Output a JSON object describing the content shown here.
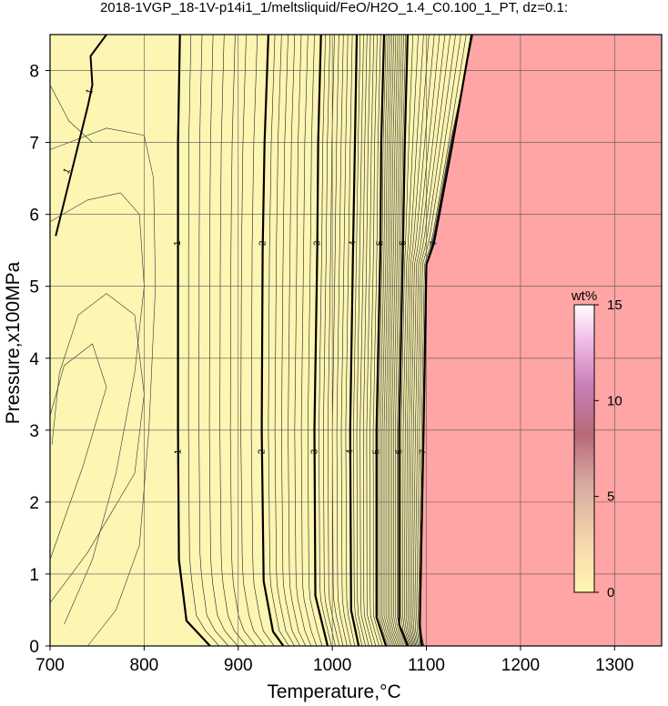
{
  "chart_data": {
    "type": "contour",
    "title": "2018-1VGP_18-1V-p14i1_1/meltsliquid/FeO/H2O_1.4_C0.100_1_PT, dz=0.1:",
    "xlabel": "Temperature,°C",
    "ylabel": "Pressure,x100MPa",
    "xlim": [
      700,
      1350
    ],
    "ylim": [
      0,
      8.5
    ],
    "xticks": [
      "700",
      "800",
      "900",
      "1000",
      "1100",
      "1200",
      "1300"
    ],
    "yticks": [
      "0",
      "1",
      "2",
      "3",
      "4",
      "5",
      "6",
      "7",
      "8"
    ],
    "grid": true,
    "colorbar": {
      "label": "wt%",
      "range": [
        0,
        15
      ],
      "ticks": [
        "0",
        "5",
        "10",
        "15"
      ],
      "placement": "right"
    },
    "background_colors": {
      "low": "#fdf5b2",
      "high": "#ffa5a5"
    },
    "labeled_contours": [
      {
        "level": "1",
        "points": [
          [
            838,
            8.5
          ],
          [
            836,
            7
          ],
          [
            836,
            5.5
          ],
          [
            836,
            3
          ],
          [
            837,
            1.2
          ],
          [
            845,
            0.35
          ],
          [
            870,
            0
          ]
        ]
      },
      {
        "level": "2",
        "points": [
          [
            932,
            8.5
          ],
          [
            928,
            7
          ],
          [
            926,
            5.5
          ],
          [
            925,
            3
          ],
          [
            927,
            0.9
          ],
          [
            937,
            0.2
          ],
          [
            948,
            0
          ]
        ]
      },
      {
        "level": "3",
        "points": [
          [
            988,
            8.5
          ],
          [
            985,
            7
          ],
          [
            984,
            5.5
          ],
          [
            981,
            3
          ],
          [
            982,
            0.7
          ],
          [
            995,
            0
          ]
        ]
      },
      {
        "level": "4",
        "points": [
          [
            1026,
            8.5
          ],
          [
            1024,
            7
          ],
          [
            1022,
            5.5
          ],
          [
            1019,
            3
          ],
          [
            1020,
            0.5
          ],
          [
            1028,
            0
          ]
        ]
      },
      {
        "level": "5",
        "points": [
          [
            1055,
            8.5
          ],
          [
            1052,
            7
          ],
          [
            1051,
            5.5
          ],
          [
            1047,
            3
          ],
          [
            1047,
            0.4
          ],
          [
            1057,
            0
          ]
        ]
      },
      {
        "level": "6",
        "points": [
          [
            1080,
            8.5
          ],
          [
            1077,
            7
          ],
          [
            1075,
            5.5
          ],
          [
            1071,
            3
          ],
          [
            1071,
            0.3
          ],
          [
            1080,
            0
          ]
        ]
      },
      {
        "level": "7",
        "points": [
          [
            1148,
            8.5
          ],
          [
            1128,
            7
          ],
          [
            1108,
            5.6
          ],
          [
            1100,
            5.3
          ],
          [
            1097,
            3
          ],
          [
            1093,
            0.3
          ],
          [
            1095,
            0
          ]
        ]
      }
    ],
    "low_contour_1": [
      [
        706,
        5.7
      ],
      [
        740,
        7.5
      ],
      [
        745,
        7.8
      ],
      [
        743,
        8.2
      ],
      [
        760,
        8.5
      ]
    ],
    "boundary": [
      [
        1150,
        8.5
      ],
      [
        1125,
        7
      ],
      [
        1106,
        5.6
      ],
      [
        1099,
        5.3
      ],
      [
        1096,
        3
      ],
      [
        1092,
        0.3
      ],
      [
        1098,
        0
      ]
    ]
  }
}
